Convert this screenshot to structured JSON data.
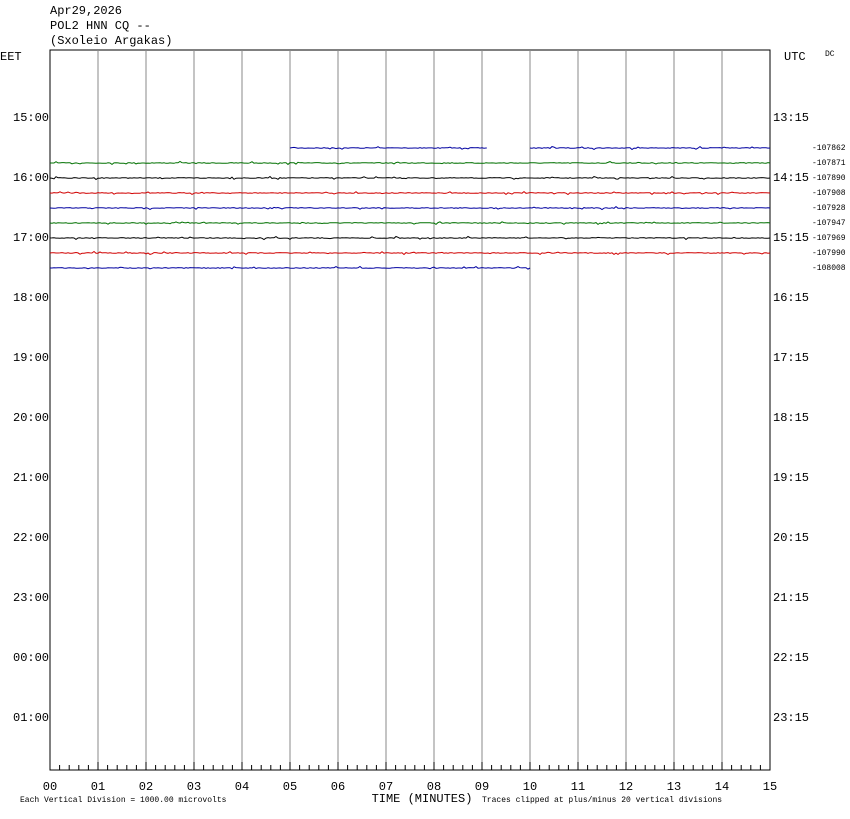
{
  "header": {
    "date": "Apr29,2026",
    "station": "POL2 HNN CQ --",
    "site": "(Sxoleio Argakas)"
  },
  "left_axis_label": "EET",
  "right_axis_label": "UTC",
  "dc_label": "DC",
  "left_times": [
    "15:00",
    "16:00",
    "17:00",
    "18:00",
    "19:00",
    "20:00",
    "21:00",
    "22:00",
    "23:00",
    "00:00",
    "01:00"
  ],
  "right_times": [
    "13:15",
    "14:15",
    "15:15",
    "16:15",
    "17:15",
    "18:15",
    "19:15",
    "20:15",
    "21:15",
    "22:15",
    "23:15"
  ],
  "x_ticks": [
    "00",
    "01",
    "02",
    "03",
    "04",
    "05",
    "06",
    "07",
    "08",
    "09",
    "10",
    "11",
    "12",
    "13",
    "14",
    "15"
  ],
  "x_label": "TIME (MINUTES)",
  "footer_left": "Each Vertical Division = 1000.00 microvolts",
  "footer_right": "Traces clipped at plus/minus 20 vertical divisions",
  "traces": [
    {
      "offset": "-107862",
      "color": "#0000a0",
      "segments": [
        [
          5,
          9.1
        ],
        [
          10,
          15
        ]
      ]
    },
    {
      "offset": "-107871",
      "color": "#007000",
      "segments": [
        [
          0,
          15
        ]
      ]
    },
    {
      "offset": "-107890",
      "color": "#000000",
      "segments": [
        [
          0,
          15
        ]
      ]
    },
    {
      "offset": "-107908",
      "color": "#d00000",
      "segments": [
        [
          0,
          15
        ]
      ]
    },
    {
      "offset": "-107928",
      "color": "#0000a0",
      "segments": [
        [
          0,
          15
        ]
      ]
    },
    {
      "offset": "-107947",
      "color": "#007000",
      "segments": [
        [
          0,
          15
        ]
      ]
    },
    {
      "offset": "-107969",
      "color": "#000000",
      "segments": [
        [
          0,
          15
        ]
      ]
    },
    {
      "offset": "-107990",
      "color": "#d00000",
      "segments": [
        [
          0,
          15
        ]
      ]
    },
    {
      "offset": "-108008",
      "color": "#0000a0",
      "segments": [
        [
          0,
          10
        ]
      ]
    }
  ]
}
